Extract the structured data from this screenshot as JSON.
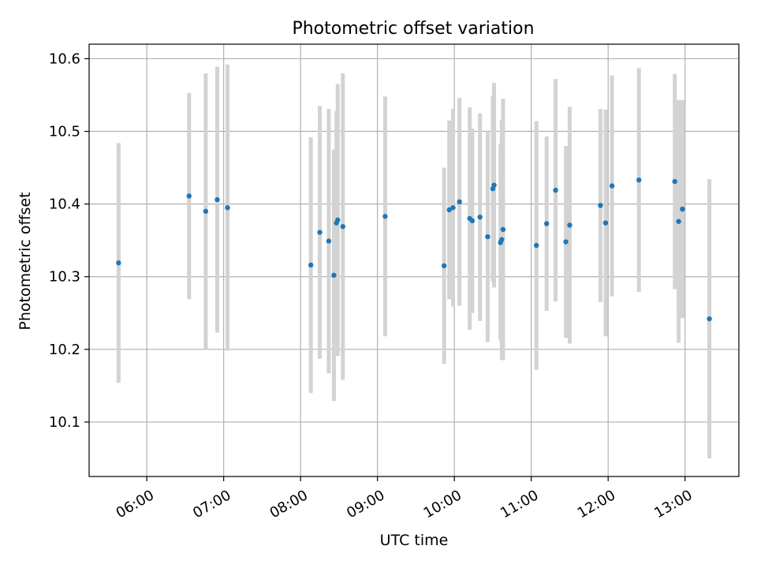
{
  "chart_data": {
    "type": "scatter",
    "title": "Photometric offset variation",
    "xlabel": "UTC time",
    "ylabel": "Photometric offset",
    "x_unit": "hours UTC",
    "xlim": [
      "05:15",
      "13:42"
    ],
    "ylim": [
      10.025,
      10.62
    ],
    "x_ticks": [
      {
        "value": "06:00",
        "label": "06:00"
      },
      {
        "value": "07:00",
        "label": "07:00"
      },
      {
        "value": "08:00",
        "label": "08:00"
      },
      {
        "value": "09:00",
        "label": "09:00"
      },
      {
        "value": "10:00",
        "label": "10:00"
      },
      {
        "value": "11:00",
        "label": "11:00"
      },
      {
        "value": "12:00",
        "label": "12:00"
      },
      {
        "value": "13:00",
        "label": "13:00"
      }
    ],
    "y_ticks": [
      {
        "value": 10.1,
        "label": "10.1"
      },
      {
        "value": 10.2,
        "label": "10.2"
      },
      {
        "value": 10.3,
        "label": "10.3"
      },
      {
        "value": 10.4,
        "label": "10.4"
      },
      {
        "value": 10.5,
        "label": "10.5"
      },
      {
        "value": 10.6,
        "label": "10.6"
      }
    ],
    "grid": true,
    "point_color": "#1f77b4",
    "errorbar_color": "#d3d3d3",
    "points": [
      {
        "x": "05:38",
        "y": 10.319,
        "yerr": 0.165
      },
      {
        "x": "06:33",
        "y": 10.411,
        "yerr": 0.142
      },
      {
        "x": "06:46",
        "y": 10.39,
        "yerr": 0.19
      },
      {
        "x": "06:55",
        "y": 10.406,
        "yerr": 0.183
      },
      {
        "x": "07:03",
        "y": 10.395,
        "yerr": 0.197
      },
      {
        "x": "08:08",
        "y": 10.316,
        "yerr": 0.176
      },
      {
        "x": "08:15",
        "y": 10.361,
        "yerr": 0.174
      },
      {
        "x": "08:22",
        "y": 10.349,
        "yerr": 0.182
      },
      {
        "x": "08:26",
        "y": 10.302,
        "yerr": 0.173
      },
      {
        "x": "08:28",
        "y": 10.374,
        "yerr": 0.154
      },
      {
        "x": "08:29",
        "y": 10.378,
        "yerr": 0.187
      },
      {
        "x": "08:33",
        "y": 10.369,
        "yerr": 0.211
      },
      {
        "x": "09:06",
        "y": 10.383,
        "yerr": 0.165
      },
      {
        "x": "09:52",
        "y": 10.315,
        "yerr": 0.135
      },
      {
        "x": "09:56",
        "y": 10.392,
        "yerr": 0.123
      },
      {
        "x": "09:59",
        "y": 10.395,
        "yerr": 0.136
      },
      {
        "x": "10:04",
        "y": 10.403,
        "yerr": 0.143
      },
      {
        "x": "10:12",
        "y": 10.38,
        "yerr": 0.153
      },
      {
        "x": "10:14",
        "y": 10.377,
        "yerr": 0.127
      },
      {
        "x": "10:20",
        "y": 10.382,
        "yerr": 0.143
      },
      {
        "x": "10:26",
        "y": 10.355,
        "yerr": 0.145
      },
      {
        "x": "10:30",
        "y": 10.421,
        "yerr": 0.128
      },
      {
        "x": "10:31",
        "y": 10.426,
        "yerr": 0.141
      },
      {
        "x": "10:36",
        "y": 10.347,
        "yerr": 0.135
      },
      {
        "x": "10:37",
        "y": 10.351,
        "yerr": 0.165
      },
      {
        "x": "10:38",
        "y": 10.365,
        "yerr": 0.18
      },
      {
        "x": "11:04",
        "y": 10.343,
        "yerr": 0.171
      },
      {
        "x": "11:12",
        "y": 10.373,
        "yerr": 0.12
      },
      {
        "x": "11:19",
        "y": 10.419,
        "yerr": 0.153
      },
      {
        "x": "11:27",
        "y": 10.348,
        "yerr": 0.132
      },
      {
        "x": "11:30",
        "y": 10.371,
        "yerr": 0.163
      },
      {
        "x": "11:54",
        "y": 10.398,
        "yerr": 0.133
      },
      {
        "x": "11:58",
        "y": 10.374,
        "yerr": 0.156
      },
      {
        "x": "12:03",
        "y": 10.425,
        "yerr": 0.152
      },
      {
        "x": "12:24",
        "y": 10.433,
        "yerr": 0.154
      },
      {
        "x": "12:52",
        "y": 10.431,
        "yerr": 0.148
      },
      {
        "x": "12:55",
        "y": 10.376,
        "yerr": 0.167
      },
      {
        "x": "12:58",
        "y": 10.393,
        "yerr": 0.15
      },
      {
        "x": "13:19",
        "y": 10.242,
        "yerr": 0.192
      }
    ]
  }
}
